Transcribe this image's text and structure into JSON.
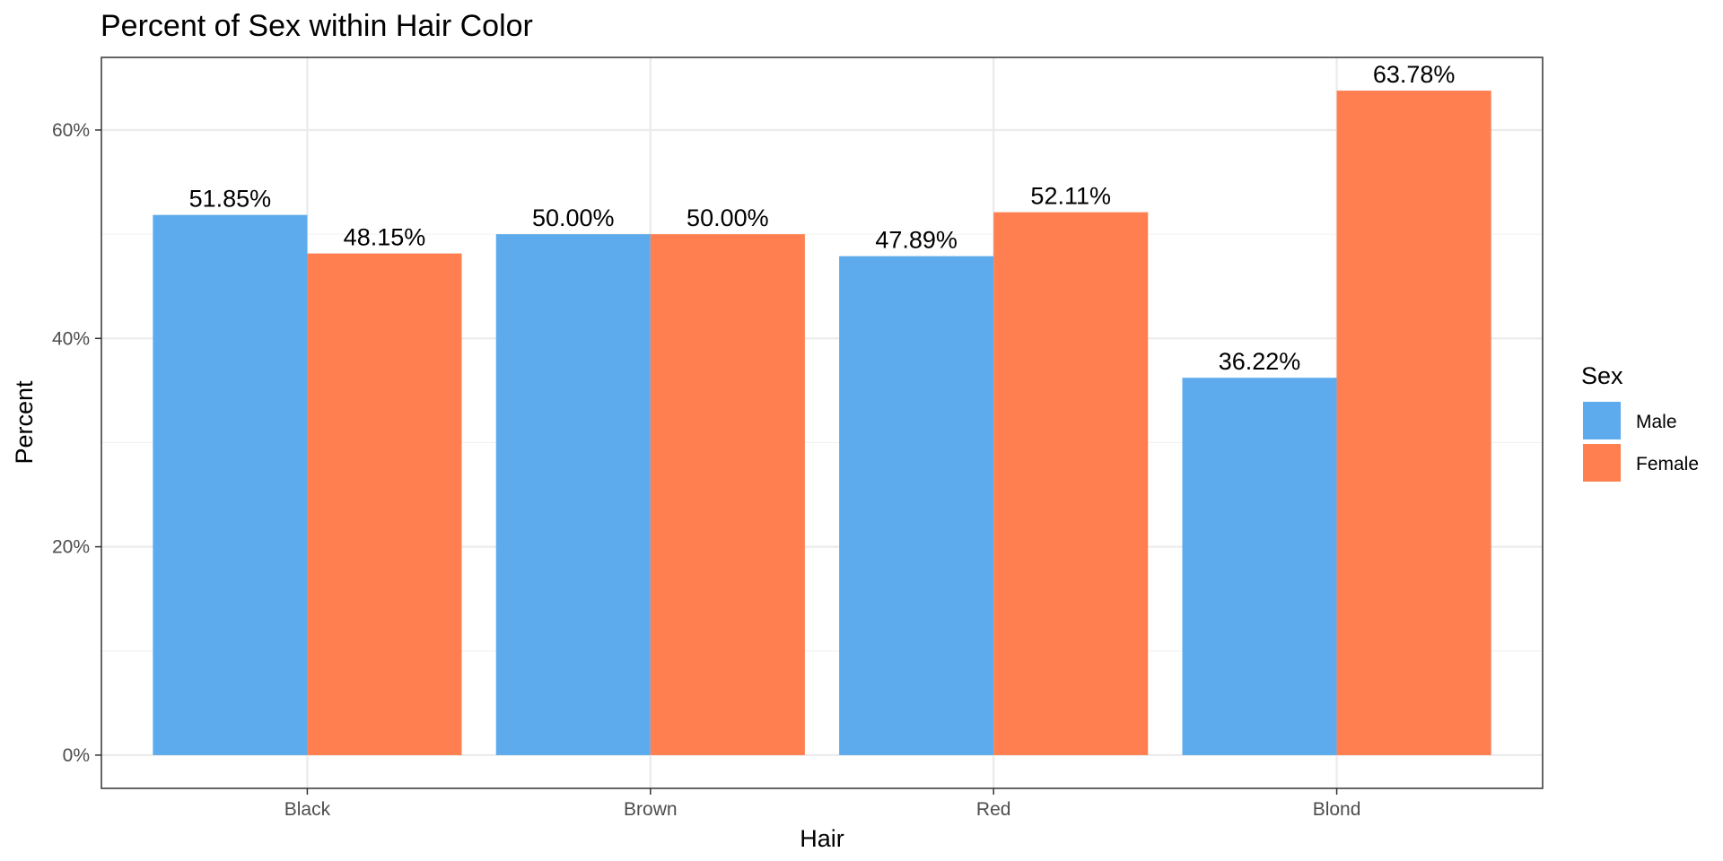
{
  "chart_data": {
    "type": "bar",
    "title": "Percent of Sex within Hair Color",
    "xlabel": "Hair",
    "ylabel": "Percent",
    "categories": [
      "Black",
      "Brown",
      "Red",
      "Blond"
    ],
    "series": [
      {
        "name": "Male",
        "color": "#5dabec",
        "values": [
          51.85,
          50.0,
          47.89,
          36.22
        ],
        "labels": [
          "51.85%",
          "50.00%",
          "47.89%",
          "36.22%"
        ]
      },
      {
        "name": "Female",
        "color": "#ff7f50",
        "values": [
          48.15,
          50.0,
          52.11,
          63.78
        ],
        "labels": [
          "48.15%",
          "50.00%",
          "52.11%",
          "63.78%"
        ]
      }
    ],
    "ylim": [
      -3.19,
      66.97
    ],
    "yticks": [
      0,
      20,
      40,
      60
    ],
    "ytick_labels": [
      "0%",
      "20%",
      "40%",
      "60%"
    ],
    "grid": true,
    "legend": {
      "title": "Sex",
      "position": "right"
    }
  }
}
